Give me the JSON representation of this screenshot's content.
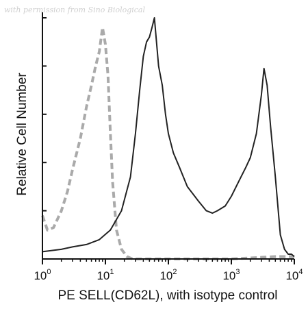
{
  "watermark": "with permission from Sino Biological",
  "chart_data": {
    "type": "line",
    "title": "",
    "xlabel": "PE SELL(CD62L), with isotype control",
    "ylabel": "Relative Cell Number",
    "x_scale": "log",
    "xlim": [
      1,
      10000
    ],
    "ylim": [
      0,
      1
    ],
    "x_ticks": [
      {
        "value": 1,
        "base": "10",
        "exp": "0"
      },
      {
        "value": 10,
        "base": "10",
        "exp": "1"
      },
      {
        "value": 100,
        "base": "10",
        "exp": "2"
      },
      {
        "value": 1000,
        "base": "10",
        "exp": "3"
      },
      {
        "value": 10000,
        "base": "10",
        "exp": "4"
      }
    ],
    "y_ticks": [
      0.0,
      0.2,
      0.4,
      0.6,
      0.8,
      1.0
    ],
    "grid": false,
    "legend": "none",
    "series": [
      {
        "style": "dashed",
        "color": "#aaaaaa",
        "x": [
          1,
          1.2,
          1.5,
          2,
          2.5,
          3,
          4,
          5,
          6,
          7,
          8,
          9,
          10,
          11,
          12,
          13,
          15,
          18,
          22,
          27,
          35,
          50,
          100,
          1000,
          5000,
          10000
        ],
        "y": [
          0.18,
          0.12,
          0.13,
          0.2,
          0.28,
          0.37,
          0.5,
          0.63,
          0.72,
          0.8,
          0.86,
          0.96,
          0.89,
          0.76,
          0.52,
          0.32,
          0.12,
          0.04,
          0.01,
          0.0,
          0.0,
          0.0,
          0.0,
          0.0,
          0.01,
          0.01
        ]
      },
      {
        "style": "solid",
        "color": "#222222",
        "x": [
          1,
          2,
          3,
          5,
          8,
          12,
          18,
          25,
          30,
          35,
          40,
          45,
          50,
          55,
          60,
          70,
          80,
          90,
          100,
          120,
          150,
          200,
          300,
          400,
          500,
          600,
          800,
          1000,
          1300,
          1700,
          2000,
          2500,
          3000,
          3300,
          3700,
          4200,
          5000,
          6000,
          7000,
          8000,
          9000,
          10000
        ],
        "y": [
          0.03,
          0.04,
          0.05,
          0.06,
          0.08,
          0.12,
          0.2,
          0.34,
          0.52,
          0.7,
          0.84,
          0.9,
          0.92,
          0.96,
          1.0,
          0.8,
          0.72,
          0.6,
          0.52,
          0.44,
          0.38,
          0.3,
          0.24,
          0.2,
          0.19,
          0.2,
          0.22,
          0.26,
          0.32,
          0.38,
          0.42,
          0.52,
          0.68,
          0.79,
          0.72,
          0.55,
          0.34,
          0.1,
          0.04,
          0.02,
          0.02,
          0.01
        ]
      }
    ]
  }
}
